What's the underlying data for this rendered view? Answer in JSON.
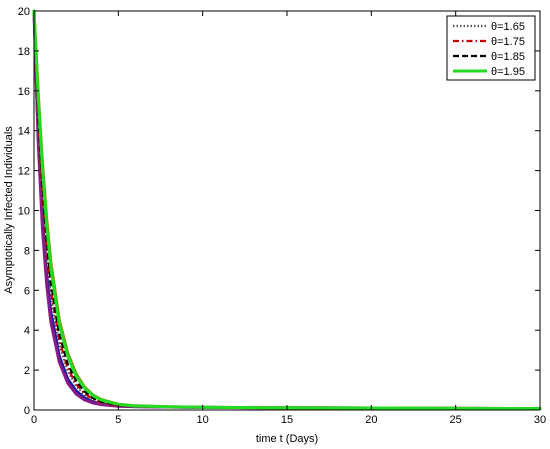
{
  "chart_data": {
    "type": "line",
    "title": "",
    "xlabel": "time t (Days)",
    "ylabel": "Asymptotically Infected Individuals",
    "xlim": [
      0,
      30
    ],
    "ylim": [
      0,
      20
    ],
    "xticks": [
      0,
      5,
      10,
      15,
      20,
      25,
      30
    ],
    "yticks": [
      0,
      2,
      4,
      6,
      8,
      10,
      12,
      14,
      16,
      18,
      20
    ],
    "grid": false,
    "legend_position": "top-right",
    "x": [
      0,
      0.25,
      0.5,
      0.75,
      1,
      1.5,
      2,
      2.5,
      3,
      3.5,
      4,
      5,
      6,
      8,
      10,
      15,
      20,
      25,
      30
    ],
    "series": [
      {
        "name": "θ=1.65",
        "color": "#555555",
        "style": "dotted",
        "values": [
          20,
          14.4,
          10.5,
          7.7,
          5.7,
          3.3,
          1.95,
          1.2,
          0.75,
          0.5,
          0.35,
          0.22,
          0.18,
          0.15,
          0.13,
          0.11,
          0.1,
          0.08,
          0.07
        ]
      },
      {
        "name": "θ=1.75",
        "color": "#cc0000",
        "style": "dashdot",
        "values": [
          20,
          14.6,
          10.8,
          8.0,
          6.0,
          3.5,
          2.1,
          1.3,
          0.82,
          0.55,
          0.38,
          0.23,
          0.18,
          0.15,
          0.13,
          0.11,
          0.1,
          0.08,
          0.07
        ]
      },
      {
        "name": "θ=1.85",
        "color": "#000000",
        "style": "dashed",
        "values": [
          20,
          15.0,
          11.3,
          8.5,
          6.4,
          3.8,
          2.3,
          1.45,
          0.92,
          0.6,
          0.42,
          0.25,
          0.19,
          0.15,
          0.13,
          0.11,
          0.1,
          0.08,
          0.07
        ]
      },
      {
        "name": "θ=1.95",
        "color": "#22dd22",
        "style": "solid",
        "values": [
          20,
          15.7,
          12.1,
          9.3,
          7.1,
          4.3,
          2.7,
          1.7,
          1.1,
          0.72,
          0.5,
          0.28,
          0.2,
          0.16,
          0.14,
          0.11,
          0.1,
          0.08,
          0.07
        ]
      }
    ],
    "unlabeled_series": [
      {
        "color": "#1a1aa0",
        "style": "solid",
        "values": [
          20,
          13.8,
          9.6,
          6.8,
          4.9,
          2.7,
          1.55,
          0.95,
          0.6,
          0.4,
          0.3,
          0.2,
          0.17,
          0.15,
          0.13,
          0.11,
          0.1,
          0.08,
          0.07
        ]
      },
      {
        "color": "#8a1a8a",
        "style": "solid",
        "values": [
          20,
          13.4,
          9.1,
          6.3,
          4.4,
          2.4,
          1.35,
          0.8,
          0.5,
          0.35,
          0.27,
          0.19,
          0.17,
          0.15,
          0.13,
          0.11,
          0.1,
          0.08,
          0.07
        ]
      },
      {
        "color": "#8a8a00",
        "style": "solid",
        "values": [
          20,
          15.9,
          12.4,
          9.6,
          7.4,
          4.5,
          2.85,
          1.8,
          1.15,
          0.75,
          0.52,
          0.29,
          0.21,
          0.16,
          0.14,
          0.11,
          0.1,
          0.08,
          0.07
        ]
      }
    ]
  }
}
